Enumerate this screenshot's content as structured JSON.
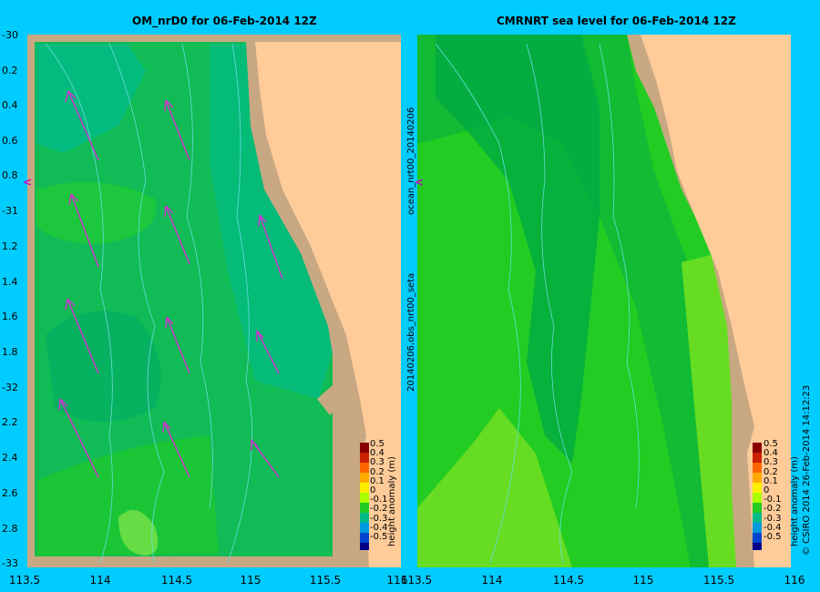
{
  "left_panel": {
    "title": "OM_nrD0 for 06-Feb-2014 12Z",
    "y_ticks": [
      "-30",
      "0.2",
      "0.4",
      "0.6",
      "0.8",
      "-31",
      "1.2",
      "1.4",
      "1.6",
      "1.8",
      "-32",
      "2.2",
      "2.4",
      "2.6",
      "2.8",
      "-33"
    ],
    "x_ticks": [
      "113.5",
      "114",
      "114.5",
      "115",
      "115.5",
      "116"
    ]
  },
  "right_panel": {
    "title": "CMRNRT sea level  for 06-Feb-2014 12Z",
    "x_ticks": [
      "113.5",
      "114",
      "114.5",
      "115",
      "115.5",
      "116"
    ]
  },
  "side_text": {
    "run_label": "ocean_nrt00_20140206",
    "obs_label": "20140206.obs_nrt00_seta",
    "credit": "© CSIRO 2014   26-Feb-2014 14:12:23"
  },
  "colorbar": {
    "unit": "height anomaly (m)",
    "ticks": [
      "0.5",
      "0.4",
      "0.3",
      "0.2",
      "0.1",
      "0",
      "-0.1",
      "-0.2",
      "-0.3",
      "-0.4",
      "-0.5"
    ],
    "colors": [
      "#8b0000",
      "#cc2200",
      "#ff6600",
      "#ffaa00",
      "#ffee00",
      "#aaff00",
      "#22cc22",
      "#00bb88",
      "#0099dd",
      "#0044cc",
      "#000088"
    ]
  },
  "colors": {
    "land": "#ffcc99",
    "shelf": "#c8a882",
    "sea_mid": "#11bb55",
    "sea_dark": "#009966",
    "sea_light": "#55dd44",
    "arrow": "#cc33cc",
    "contour": "#66dddd"
  }
}
